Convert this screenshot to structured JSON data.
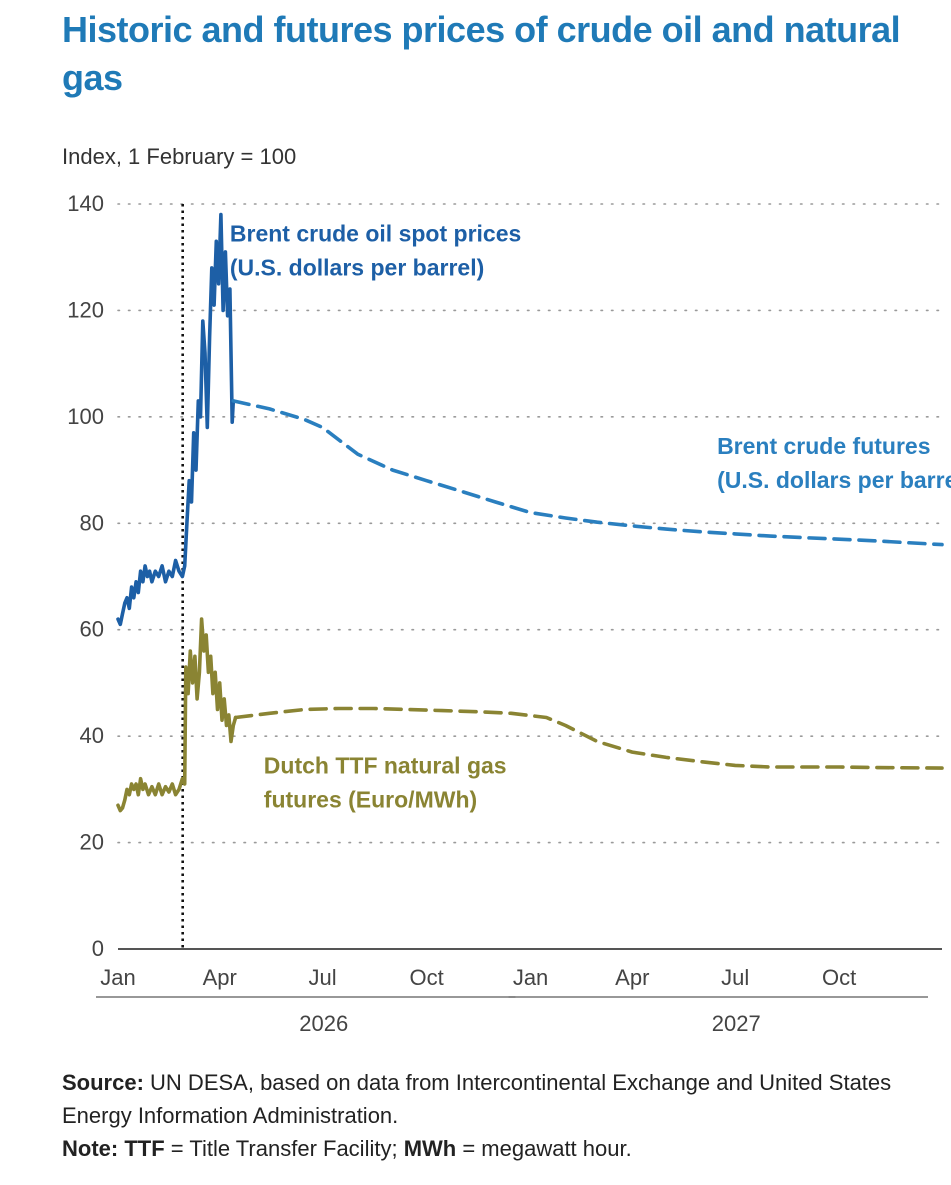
{
  "title": "Historic and futures prices of crude oil and natural gas",
  "yaxis_unit": "Index, 1 February = 100",
  "footer": {
    "source_label": "Source:",
    "source_text": "UN DESA, based on data from Intercontinental Exchange and United States Energy Information Administration.",
    "note_label": "Note:",
    "note_term1": "TTF",
    "note_def1": " = Title Transfer Facility; ",
    "note_term2": "MWh",
    "note_def2": " = megawatt hour."
  },
  "chart_data": {
    "type": "line",
    "title": "Historic and futures prices of crude oil and natural gas",
    "ylabel": "Index, 1 February = 100",
    "xlabel": "",
    "ylim": [
      0,
      140
    ],
    "yticks": [
      0,
      20,
      40,
      60,
      80,
      100,
      120,
      140
    ],
    "xlim": [
      "2026-01-01",
      "2027-12-31"
    ],
    "xticks": [
      {
        "date": "2026-01-01",
        "label": "Jan"
      },
      {
        "date": "2026-04-01",
        "label": "Apr"
      },
      {
        "date": "2026-07-01",
        "label": "Jul"
      },
      {
        "date": "2026-10-01",
        "label": "Oct"
      },
      {
        "date": "2027-01-01",
        "label": "Jan"
      },
      {
        "date": "2027-04-01",
        "label": "Apr"
      },
      {
        "date": "2027-07-01",
        "label": "Jul"
      },
      {
        "date": "2027-10-01",
        "label": "Oct"
      }
    ],
    "year_labels": [
      {
        "label": "2026",
        "from": "2026-01-01",
        "to": "2026-12-31"
      },
      {
        "label": "2027",
        "from": "2027-01-01",
        "to": "2027-12-31"
      }
    ],
    "reference_line": {
      "date": "2026-03-01",
      "style": "dotted"
    },
    "grid": {
      "horizontal": true,
      "style": "dotted"
    },
    "colors": {
      "brent": "#1d5fa6",
      "brent_futures": "#2a7fbf",
      "ttf": "#8a8433",
      "title": "#1f7ab7",
      "axis": "#555555",
      "grid": "#9a9a9a"
    },
    "series": [
      {
        "name": "Brent crude oil spot prices (U.S. dollars per barrel)",
        "label_lines": [
          "Brent crude oil spot prices",
          "(U.S. dollars per barrel)"
        ],
        "label_anchor": {
          "date": "2026-04-10",
          "value": 133
        },
        "color": "#1d5fa6",
        "style": "solid",
        "points": [
          [
            "2026-01-01",
            62
          ],
          [
            "2026-01-03",
            61
          ],
          [
            "2026-01-05",
            63
          ],
          [
            "2026-01-07",
            65
          ],
          [
            "2026-01-09",
            66
          ],
          [
            "2026-01-11",
            64
          ],
          [
            "2026-01-13",
            68
          ],
          [
            "2026-01-15",
            66
          ],
          [
            "2026-01-17",
            69
          ],
          [
            "2026-01-19",
            67
          ],
          [
            "2026-01-21",
            71
          ],
          [
            "2026-01-23",
            69
          ],
          [
            "2026-01-25",
            72
          ],
          [
            "2026-01-27",
            70
          ],
          [
            "2026-01-29",
            71
          ],
          [
            "2026-01-31",
            69
          ],
          [
            "2026-02-03",
            71
          ],
          [
            "2026-02-06",
            70
          ],
          [
            "2026-02-09",
            72
          ],
          [
            "2026-02-12",
            69
          ],
          [
            "2026-02-15",
            71
          ],
          [
            "2026-02-18",
            70
          ],
          [
            "2026-02-21",
            73
          ],
          [
            "2026-02-24",
            71
          ],
          [
            "2026-02-27",
            70
          ],
          [
            "2026-03-01",
            72
          ],
          [
            "2026-03-03",
            80
          ],
          [
            "2026-03-05",
            88
          ],
          [
            "2026-03-07",
            84
          ],
          [
            "2026-03-09",
            97
          ],
          [
            "2026-03-11",
            90
          ],
          [
            "2026-03-13",
            103
          ],
          [
            "2026-03-15",
            100
          ],
          [
            "2026-03-17",
            118
          ],
          [
            "2026-03-19",
            112
          ],
          [
            "2026-03-21",
            98
          ],
          [
            "2026-03-23",
            115
          ],
          [
            "2026-03-25",
            128
          ],
          [
            "2026-03-27",
            121
          ],
          [
            "2026-03-29",
            133
          ],
          [
            "2026-03-31",
            125
          ],
          [
            "2026-04-02",
            138
          ],
          [
            "2026-04-04",
            120
          ],
          [
            "2026-04-06",
            131
          ],
          [
            "2026-04-08",
            119
          ],
          [
            "2026-04-10",
            124
          ],
          [
            "2026-04-12",
            99
          ],
          [
            "2026-04-13",
            103
          ]
        ]
      },
      {
        "name": "Brent crude futures (U.S. dollars per barrel)",
        "label_lines": [
          "Brent crude futures",
          "(U.S. dollars per barrel)"
        ],
        "label_anchor": {
          "date": "2027-06-15",
          "value": 93
        },
        "color": "#2a7fbf",
        "style": "dashed",
        "points": [
          [
            "2026-04-13",
            103
          ],
          [
            "2026-05-15",
            101.5
          ],
          [
            "2026-06-15",
            99.5
          ],
          [
            "2026-07-01",
            98
          ],
          [
            "2026-08-01",
            93
          ],
          [
            "2026-09-01",
            90
          ],
          [
            "2026-10-01",
            88
          ],
          [
            "2026-11-01",
            86
          ],
          [
            "2026-12-01",
            84
          ],
          [
            "2027-01-01",
            82
          ],
          [
            "2027-02-01",
            81
          ],
          [
            "2027-03-01",
            80.2
          ],
          [
            "2027-04-01",
            79.5
          ],
          [
            "2027-05-01",
            78.9
          ],
          [
            "2027-06-01",
            78.4
          ],
          [
            "2027-07-01",
            78
          ],
          [
            "2027-08-01",
            77.6
          ],
          [
            "2027-09-01",
            77.3
          ],
          [
            "2027-10-01",
            77
          ],
          [
            "2027-11-01",
            76.7
          ],
          [
            "2027-12-31",
            76
          ]
        ]
      },
      {
        "name": "Dutch TTF natural gas futures (Euro/MWh)",
        "label_lines": [
          "Dutch TTF natural gas",
          "futures (Euro/MWh)"
        ],
        "label_anchor": {
          "date": "2026-05-10",
          "value": 33
        },
        "color": "#8a8433",
        "style": "mixed",
        "solid_until": "2026-04-15",
        "points": [
          [
            "2026-01-01",
            27
          ],
          [
            "2026-01-03",
            26
          ],
          [
            "2026-01-05",
            26.5
          ],
          [
            "2026-01-07",
            28
          ],
          [
            "2026-01-09",
            30
          ],
          [
            "2026-01-11",
            29
          ],
          [
            "2026-01-13",
            31
          ],
          [
            "2026-01-15",
            30
          ],
          [
            "2026-01-17",
            31
          ],
          [
            "2026-01-19",
            29
          ],
          [
            "2026-01-21",
            32
          ],
          [
            "2026-01-23",
            30
          ],
          [
            "2026-01-25",
            31
          ],
          [
            "2026-01-28",
            29
          ],
          [
            "2026-01-31",
            30.5
          ],
          [
            "2026-02-03",
            29
          ],
          [
            "2026-02-06",
            31
          ],
          [
            "2026-02-09",
            29
          ],
          [
            "2026-02-12",
            30.5
          ],
          [
            "2026-02-15",
            29.5
          ],
          [
            "2026-02-18",
            31
          ],
          [
            "2026-02-21",
            29
          ],
          [
            "2026-02-24",
            30
          ],
          [
            "2026-02-27",
            32
          ],
          [
            "2026-03-01",
            31
          ],
          [
            "2026-03-02",
            53
          ],
          [
            "2026-03-04",
            48
          ],
          [
            "2026-03-06",
            56
          ],
          [
            "2026-03-08",
            50
          ],
          [
            "2026-03-10",
            55
          ],
          [
            "2026-03-12",
            47
          ],
          [
            "2026-03-14",
            52
          ],
          [
            "2026-03-16",
            62
          ],
          [
            "2026-03-18",
            56
          ],
          [
            "2026-03-20",
            59
          ],
          [
            "2026-03-22",
            52
          ],
          [
            "2026-03-24",
            55
          ],
          [
            "2026-03-26",
            48
          ],
          [
            "2026-03-28",
            52
          ],
          [
            "2026-03-30",
            45
          ],
          [
            "2026-04-01",
            50
          ],
          [
            "2026-04-03",
            43
          ],
          [
            "2026-04-05",
            47
          ],
          [
            "2026-04-07",
            42
          ],
          [
            "2026-04-09",
            44
          ],
          [
            "2026-04-11",
            39
          ],
          [
            "2026-04-13",
            42
          ],
          [
            "2026-04-15",
            43.5
          ],
          [
            "2026-05-15",
            44.3
          ],
          [
            "2026-06-15",
            45
          ],
          [
            "2026-07-15",
            45.2
          ],
          [
            "2026-08-15",
            45.2
          ],
          [
            "2026-09-15",
            45
          ],
          [
            "2026-10-15",
            44.8
          ],
          [
            "2026-11-15",
            44.6
          ],
          [
            "2026-12-15",
            44.3
          ],
          [
            "2027-01-15",
            43.5
          ],
          [
            "2027-02-01",
            42
          ],
          [
            "2027-03-01",
            39
          ],
          [
            "2027-04-01",
            37
          ],
          [
            "2027-05-01",
            36
          ],
          [
            "2027-06-01",
            35.2
          ],
          [
            "2027-07-01",
            34.5
          ],
          [
            "2027-08-01",
            34.2
          ],
          [
            "2027-09-01",
            34.2
          ],
          [
            "2027-10-01",
            34.2
          ],
          [
            "2027-11-01",
            34.1
          ],
          [
            "2027-12-31",
            34
          ]
        ]
      }
    ]
  }
}
